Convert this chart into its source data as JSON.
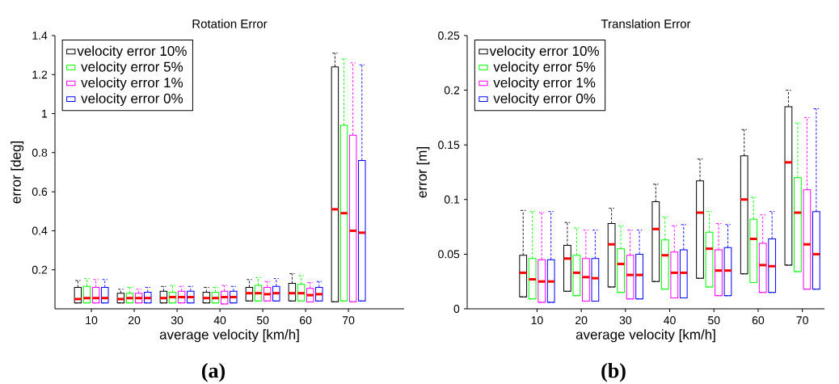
{
  "chart_data": [
    {
      "type": "box",
      "title": "Rotation Error",
      "xlabel": "average velocity [km/h]",
      "ylabel": "error [deg]",
      "categories": [
        "10",
        "20",
        "30",
        "40",
        "50",
        "60",
        "70"
      ],
      "ylim": [
        0,
        1.4
      ],
      "yticks": [
        0.2,
        0.4,
        0.6,
        0.8,
        1,
        1.2,
        1.4
      ],
      "legend": "top left",
      "annotations": [
        "**(a)**"
      ],
      "series": [
        {
          "name": "velocity error 10%",
          "color": "#000000",
          "boxes": [
            {
              "low": 0.03,
              "q1": 0.03,
              "median": 0.05,
              "q3": 0.11,
              "high": 0.145
            },
            {
              "low": 0.03,
              "q1": 0.03,
              "median": 0.05,
              "q3": 0.08,
              "high": 0.1
            },
            {
              "low": 0.03,
              "q1": 0.03,
              "median": 0.055,
              "q3": 0.09,
              "high": 0.115
            },
            {
              "low": 0.03,
              "q1": 0.03,
              "median": 0.055,
              "q3": 0.085,
              "high": 0.11
            },
            {
              "low": 0.04,
              "q1": 0.04,
              "median": 0.08,
              "q3": 0.11,
              "high": 0.15
            },
            {
              "low": 0.04,
              "q1": 0.04,
              "median": 0.08,
              "q3": 0.13,
              "high": 0.18
            },
            {
              "low": 0.036,
              "q1": 0.036,
              "median": 0.51,
              "q3": 1.24,
              "high": 1.31
            }
          ]
        },
        {
          "name": "velocity error 5%",
          "color": "#00ff00",
          "boxes": [
            {
              "low": 0.03,
              "q1": 0.03,
              "median": 0.055,
              "q3": 0.115,
              "high": 0.155
            },
            {
              "low": 0.03,
              "q1": 0.03,
              "median": 0.055,
              "q3": 0.08,
              "high": 0.11
            },
            {
              "low": 0.03,
              "q1": 0.03,
              "median": 0.06,
              "q3": 0.085,
              "high": 0.12
            },
            {
              "low": 0.03,
              "q1": 0.03,
              "median": 0.055,
              "q3": 0.085,
              "high": 0.11
            },
            {
              "low": 0.04,
              "q1": 0.04,
              "median": 0.08,
              "q3": 0.12,
              "high": 0.16
            },
            {
              "low": 0.04,
              "q1": 0.04,
              "median": 0.08,
              "q3": 0.125,
              "high": 0.17
            },
            {
              "low": 0.04,
              "q1": 0.04,
              "median": 0.49,
              "q3": 0.94,
              "high": 1.28
            }
          ]
        },
        {
          "name": "velocity error 1%",
          "color": "#ff00ff",
          "boxes": [
            {
              "low": 0.03,
              "q1": 0.03,
              "median": 0.055,
              "q3": 0.11,
              "high": 0.15
            },
            {
              "low": 0.03,
              "q1": 0.03,
              "median": 0.055,
              "q3": 0.08,
              "high": 0.1
            },
            {
              "low": 0.03,
              "q1": 0.03,
              "median": 0.06,
              "q3": 0.09,
              "high": 0.115
            },
            {
              "low": 0.025,
              "q1": 0.025,
              "median": 0.06,
              "q3": 0.09,
              "high": 0.12
            },
            {
              "low": 0.04,
              "q1": 0.04,
              "median": 0.075,
              "q3": 0.11,
              "high": 0.14
            },
            {
              "low": 0.035,
              "q1": 0.035,
              "median": 0.07,
              "q3": 0.105,
              "high": 0.135
            },
            {
              "low": 0.036,
              "q1": 0.036,
              "median": 0.4,
              "q3": 0.89,
              "high": 1.26
            }
          ]
        },
        {
          "name": "velocity error 0%",
          "color": "#0000ff",
          "boxes": [
            {
              "low": 0.03,
              "q1": 0.03,
              "median": 0.055,
              "q3": 0.11,
              "high": 0.15
            },
            {
              "low": 0.03,
              "q1": 0.03,
              "median": 0.055,
              "q3": 0.085,
              "high": 0.11
            },
            {
              "low": 0.03,
              "q1": 0.03,
              "median": 0.06,
              "q3": 0.09,
              "high": 0.115
            },
            {
              "low": 0.03,
              "q1": 0.03,
              "median": 0.06,
              "q3": 0.09,
              "high": 0.115
            },
            {
              "low": 0.04,
              "q1": 0.04,
              "median": 0.08,
              "q3": 0.115,
              "high": 0.155
            },
            {
              "low": 0.04,
              "q1": 0.04,
              "median": 0.075,
              "q3": 0.11,
              "high": 0.14
            },
            {
              "low": 0.04,
              "q1": 0.04,
              "median": 0.39,
              "q3": 0.76,
              "high": 1.25
            }
          ]
        }
      ]
    },
    {
      "type": "box",
      "title": "Translation Error",
      "xlabel": "average velocity [km/h]",
      "ylabel": "error [m]",
      "categories": [
        "10",
        "20",
        "30",
        "40",
        "50",
        "60",
        "70"
      ],
      "ylim": [
        0,
        0.25
      ],
      "yticks": [
        0,
        0.05,
        0.1,
        0.15,
        0.2,
        0.25
      ],
      "legend": "top left",
      "annotations": [
        "**(b)**"
      ],
      "series": [
        {
          "name": "velocity error 10%",
          "color": "#000000",
          "boxes": [
            {
              "low": 0.011,
              "q1": 0.011,
              "median": 0.033,
              "q3": 0.049,
              "high": 0.09
            },
            {
              "low": 0.016,
              "q1": 0.016,
              "median": 0.046,
              "q3": 0.058,
              "high": 0.079
            },
            {
              "low": 0.02,
              "q1": 0.02,
              "median": 0.059,
              "q3": 0.078,
              "high": 0.092
            },
            {
              "low": 0.025,
              "q1": 0.025,
              "median": 0.073,
              "q3": 0.098,
              "high": 0.114
            },
            {
              "low": 0.028,
              "q1": 0.028,
              "median": 0.088,
              "q3": 0.117,
              "high": 0.137
            },
            {
              "low": 0.032,
              "q1": 0.032,
              "median": 0.1,
              "q3": 0.14,
              "high": 0.164
            },
            {
              "low": 0.04,
              "q1": 0.04,
              "median": 0.134,
              "q3": 0.185,
              "high": 0.2
            }
          ]
        },
        {
          "name": "velocity error 5%",
          "color": "#00ff00",
          "boxes": [
            {
              "low": 0.009,
              "q1": 0.009,
              "median": 0.027,
              "q3": 0.046,
              "high": 0.089
            },
            {
              "low": 0.012,
              "q1": 0.012,
              "median": 0.033,
              "q3": 0.049,
              "high": 0.074
            },
            {
              "low": 0.015,
              "q1": 0.015,
              "median": 0.041,
              "q3": 0.055,
              "high": 0.076
            },
            {
              "low": 0.018,
              "q1": 0.018,
              "median": 0.049,
              "q3": 0.063,
              "high": 0.084
            },
            {
              "low": 0.02,
              "q1": 0.02,
              "median": 0.055,
              "q3": 0.07,
              "high": 0.089
            },
            {
              "low": 0.024,
              "q1": 0.024,
              "median": 0.064,
              "q3": 0.082,
              "high": 0.102
            },
            {
              "low": 0.034,
              "q1": 0.034,
              "median": 0.088,
              "q3": 0.12,
              "high": 0.17
            }
          ]
        },
        {
          "name": "velocity error 1%",
          "color": "#ff00ff",
          "boxes": [
            {
              "low": 0.006,
              "q1": 0.006,
              "median": 0.025,
              "q3": 0.045,
              "high": 0.088
            },
            {
              "low": 0.007,
              "q1": 0.007,
              "median": 0.029,
              "q3": 0.046,
              "high": 0.072
            },
            {
              "low": 0.009,
              "q1": 0.009,
              "median": 0.031,
              "q3": 0.049,
              "high": 0.072
            },
            {
              "low": 0.01,
              "q1": 0.01,
              "median": 0.033,
              "q3": 0.052,
              "high": 0.076
            },
            {
              "low": 0.012,
              "q1": 0.012,
              "median": 0.035,
              "q3": 0.054,
              "high": 0.078
            },
            {
              "low": 0.015,
              "q1": 0.015,
              "median": 0.04,
              "q3": 0.06,
              "high": 0.086
            },
            {
              "low": 0.018,
              "q1": 0.018,
              "median": 0.059,
              "q3": 0.109,
              "high": 0.175
            }
          ]
        },
        {
          "name": "velocity error 0%",
          "color": "#0000ff",
          "boxes": [
            {
              "low": 0.006,
              "q1": 0.006,
              "median": 0.025,
              "q3": 0.045,
              "high": 0.089
            },
            {
              "low": 0.007,
              "q1": 0.007,
              "median": 0.028,
              "q3": 0.046,
              "high": 0.072
            },
            {
              "low": 0.009,
              "q1": 0.009,
              "median": 0.031,
              "q3": 0.05,
              "high": 0.072
            },
            {
              "low": 0.01,
              "q1": 0.01,
              "median": 0.033,
              "q3": 0.054,
              "high": 0.077
            },
            {
              "low": 0.012,
              "q1": 0.012,
              "median": 0.035,
              "q3": 0.056,
              "high": 0.077
            },
            {
              "low": 0.015,
              "q1": 0.015,
              "median": 0.039,
              "q3": 0.064,
              "high": 0.089
            },
            {
              "low": 0.018,
              "q1": 0.018,
              "median": 0.05,
              "q3": 0.089,
              "high": 0.183
            }
          ]
        }
      ]
    }
  ]
}
